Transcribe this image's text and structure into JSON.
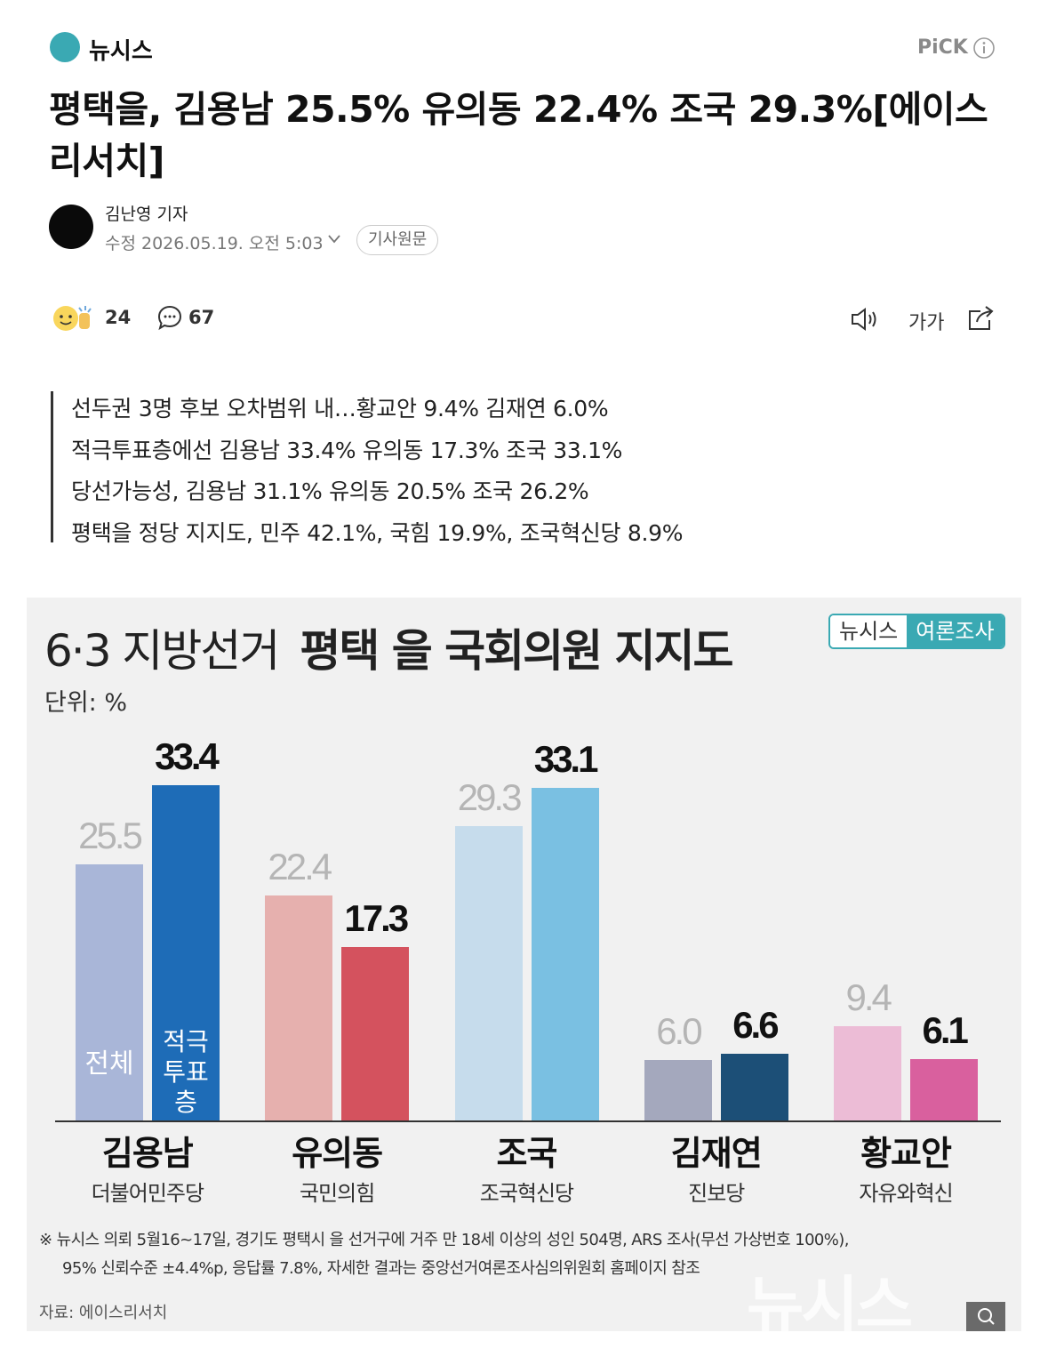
{
  "header": {
    "press": "뉴시스",
    "pick": "PiCK"
  },
  "article": {
    "title": "평택을, 김용남 25.5% 유의동 22.4% 조국 29.3%[에이스리서치]",
    "reporter": "김난영 기자",
    "modified": "수정 2026.05.19. 오전 5:03",
    "original": "기사원문"
  },
  "reactions": {
    "likes": 24,
    "comments": 67
  },
  "toolbar": {
    "font_size": "가가"
  },
  "summary": [
    "선두권 3명 후보 오차범위 내…황교안 9.4% 김재연 6.0%",
    "적극투표층에선 김용남 33.4% 유의동 17.3% 조국 33.1%",
    "당선가능성, 김용남 31.1% 유의동 20.5% 조국 26.2%",
    "평택을 정당 지지도, 민주 42.1%, 국힘 19.9%, 조국혁신당 8.9%"
  ],
  "chart_data": {
    "type": "bar",
    "title": "6·3 지방선거",
    "title_bold": "평택 을 국회의원 지지도",
    "badge": [
      "뉴시스",
      "여론조사"
    ],
    "unit": "단위: %",
    "categories": [
      "김용남",
      "유의동",
      "조국",
      "김재연",
      "황교안"
    ],
    "subcategories": [
      "더불어민주당",
      "국민의힘",
      "조국혁신당",
      "진보당",
      "자유와혁신"
    ],
    "series": [
      {
        "name": "전체",
        "colors": [
          "#a9b6d8",
          "#e6b0ae",
          "#c6dcec",
          "#a4a8bd",
          "#ecbcd6"
        ],
        "values": [
          25.5,
          22.4,
          29.3,
          6.0,
          9.4
        ],
        "value_labels": [
          "25.5",
          "22.4",
          "29.3",
          "6.0",
          "9.4"
        ]
      },
      {
        "name": "적극투표층",
        "colors": [
          "#1e6cb7",
          "#d4525e",
          "#7ac0e2",
          "#1c4f77",
          "#d9609e"
        ],
        "values": [
          33.4,
          17.3,
          33.1,
          6.6,
          6.1
        ],
        "value_labels": [
          "33.4",
          "17.3",
          "33.1",
          "6.6",
          "6.1"
        ]
      }
    ],
    "notes": [
      "※ 뉴시스 의뢰 5월16~17일, 경기도 평택시 을 선거구에 거주 만 18세 이상의 성인 504명, ARS 조사(무선 가상번호 100%),",
      "95% 신뢰수준 ±4.4%p, 응답률 7.8%, 자세한 결과는 중앙선거여론조사심의위원회 홈페이지 참조"
    ],
    "source": "자료: 에이스리서치",
    "watermark": "뉴시스"
  }
}
